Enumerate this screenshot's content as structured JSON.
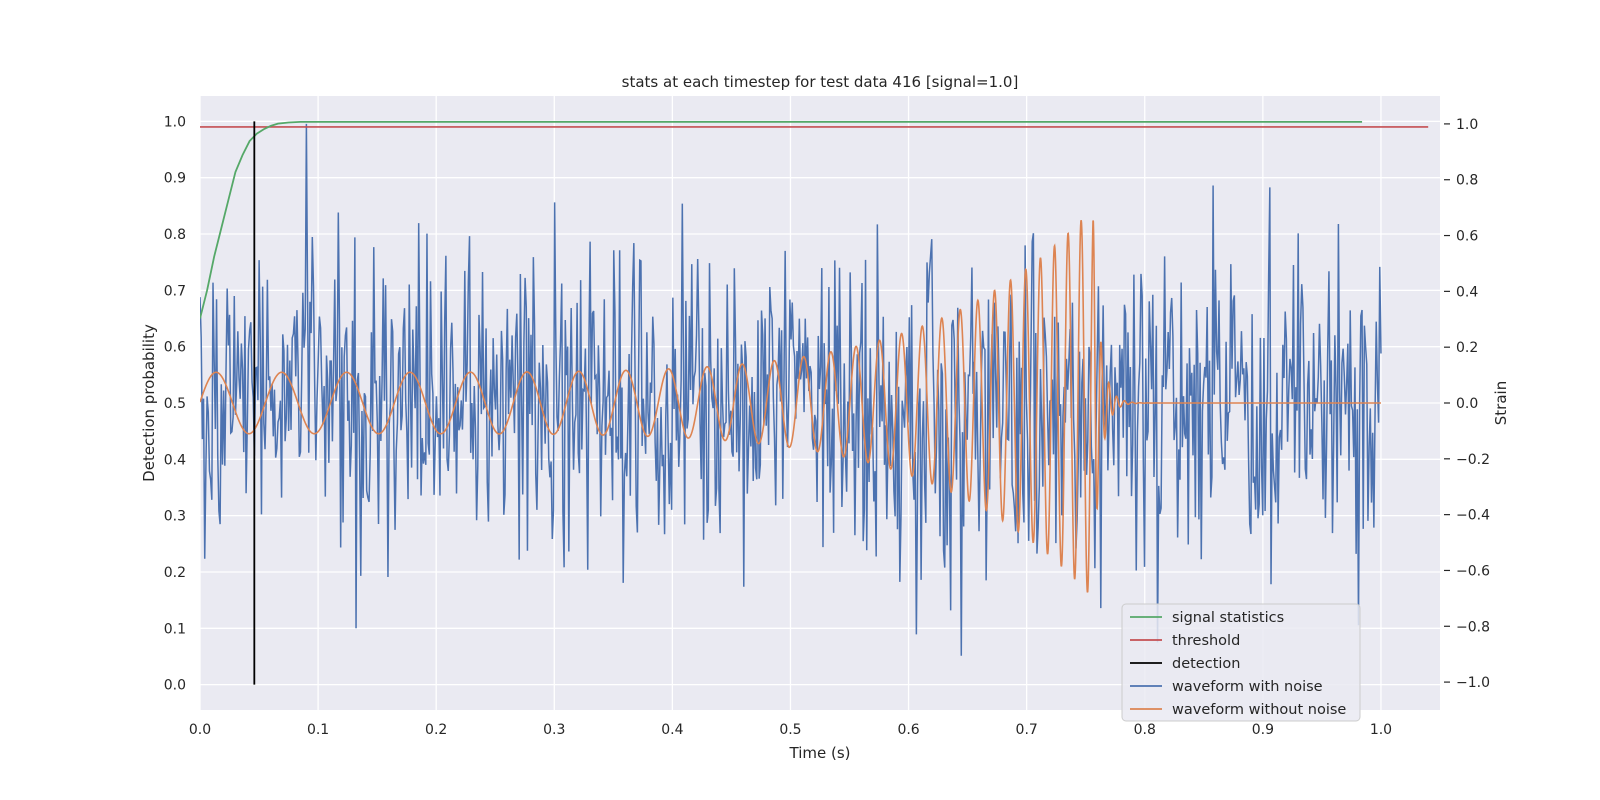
{
  "chart_data": {
    "type": "line",
    "title": "stats at each timestep for test data 416 [signal=1.0]",
    "xlabel": "Time (s)",
    "ylabel": "Detection probability",
    "y2label": "Strain",
    "xlim": [
      0.0,
      1.05
    ],
    "ylim": [
      -0.045,
      1.045
    ],
    "y2lim": [
      -1.1,
      1.1
    ],
    "xticks": [
      "0.0",
      "0.1",
      "0.2",
      "0.3",
      "0.4",
      "0.5",
      "0.6",
      "0.7",
      "0.8",
      "0.9",
      "1.0"
    ],
    "yticks": [
      "0.0",
      "0.1",
      "0.2",
      "0.3",
      "0.4",
      "0.5",
      "0.6",
      "0.7",
      "0.8",
      "0.9",
      "1.0"
    ],
    "y2ticks": [
      "−1.0",
      "−0.8",
      "−0.6",
      "−0.4",
      "−0.2",
      "0.0",
      "0.2",
      "0.4",
      "0.6",
      "0.8",
      "1.0"
    ],
    "grid": true,
    "legend_position": "lower-right",
    "colors": {
      "signal": "#55a868",
      "threshold": "#c44e52",
      "detection": "#000000",
      "noisy": "#4c72b0",
      "clean": "#dd8452",
      "background": "#eaeaf2",
      "grid": "#ffffff"
    },
    "series": [
      {
        "name": "signal statistics",
        "axis": "left",
        "x": [
          0.0,
          0.006,
          0.012,
          0.018,
          0.024,
          0.03,
          0.036,
          0.042,
          0.048,
          0.054,
          0.06,
          0.066,
          0.075,
          0.085,
          0.1,
          0.15,
          0.3,
          0.5,
          0.7,
          0.9,
          0.984
        ],
        "y": [
          0.65,
          0.7,
          0.76,
          0.81,
          0.86,
          0.91,
          0.94,
          0.965,
          0.978,
          0.986,
          0.992,
          0.996,
          0.998,
          0.999,
          0.999,
          0.999,
          0.999,
          0.999,
          0.999,
          0.999,
          0.999
        ]
      },
      {
        "name": "threshold",
        "axis": "left",
        "x": [
          0.0,
          1.04
        ],
        "y": [
          0.99,
          0.99
        ]
      },
      {
        "name": "detection",
        "axis": "left",
        "x": [
          0.046,
          0.046
        ],
        "y": [
          0.0,
          1.0
        ]
      },
      {
        "name": "waveform with noise",
        "axis": "right",
        "generated": "noise",
        "x_range": [
          0.0,
          1.0
        ],
        "points": 1000,
        "amplitude_std": 0.28,
        "y_range": [
          -1.0,
          1.0
        ]
      },
      {
        "name": "waveform without noise",
        "axis": "right",
        "generated": "chirp",
        "x_range": [
          0.0,
          1.0
        ],
        "merger_time": 0.756,
        "base_amplitude": 0.11,
        "peak_amplitude": 0.7,
        "start_frequency_hz": 18,
        "merger_frequency_hz": 95
      }
    ]
  }
}
